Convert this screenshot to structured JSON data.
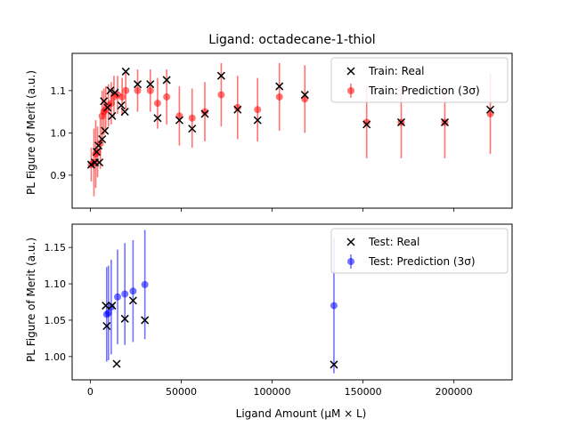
{
  "chart_data": [
    {
      "type": "scatter",
      "title": "Ligand: octadecane-1-thiol",
      "ylabel": "PL Figure of Merit (a.u.)",
      "xlim": [
        -10000,
        232000
      ],
      "ylim": [
        0.822,
        1.188
      ],
      "yticks": [
        0.9,
        1.0,
        1.1
      ],
      "ytick_labels": [
        "0.9",
        "1.0",
        "1.1"
      ],
      "grid": false,
      "legend_position": "top-right",
      "series": [
        {
          "name": "Train: Real",
          "marker": "x",
          "color": "#000000",
          "points": [
            {
              "x": 500,
              "y": 0.925
            },
            {
              "x": 2500,
              "y": 0.93
            },
            {
              "x": 3500,
              "y": 0.955
            },
            {
              "x": 4500,
              "y": 0.97
            },
            {
              "x": 5000,
              "y": 0.93
            },
            {
              "x": 6500,
              "y": 0.985
            },
            {
              "x": 7500,
              "y": 1.075
            },
            {
              "x": 8000,
              "y": 1.005
            },
            {
              "x": 9500,
              "y": 1.06
            },
            {
              "x": 11000,
              "y": 1.1
            },
            {
              "x": 12000,
              "y": 1.04
            },
            {
              "x": 13500,
              "y": 1.095
            },
            {
              "x": 17000,
              "y": 1.065
            },
            {
              "x": 19500,
              "y": 1.145
            },
            {
              "x": 19000,
              "y": 1.05
            },
            {
              "x": 26000,
              "y": 1.115
            },
            {
              "x": 33000,
              "y": 1.115
            },
            {
              "x": 37000,
              "y": 1.035
            },
            {
              "x": 42000,
              "y": 1.125
            },
            {
              "x": 49000,
              "y": 1.03
            },
            {
              "x": 56000,
              "y": 1.01
            },
            {
              "x": 63000,
              "y": 1.045
            },
            {
              "x": 72000,
              "y": 1.135
            },
            {
              "x": 81000,
              "y": 1.055
            },
            {
              "x": 92000,
              "y": 1.03
            },
            {
              "x": 104000,
              "y": 1.11
            },
            {
              "x": 118000,
              "y": 1.09
            },
            {
              "x": 152000,
              "y": 1.02
            },
            {
              "x": 171000,
              "y": 1.025
            },
            {
              "x": 195000,
              "y": 1.025
            },
            {
              "x": 220000,
              "y": 1.055
            }
          ]
        },
        {
          "name": "Train: Prediction (3σ)",
          "marker": "o-errorbar",
          "color": "#ff0000",
          "points": [
            {
              "x": 500,
              "y": 0.925,
              "err": 0.04
            },
            {
              "x": 2000,
              "y": 0.93,
              "err": 0.08
            },
            {
              "x": 3000,
              "y": 0.95,
              "err": 0.08
            },
            {
              "x": 4000,
              "y": 0.955,
              "err": 0.06
            },
            {
              "x": 5500,
              "y": 0.975,
              "err": 0.06
            },
            {
              "x": 6500,
              "y": 1.04,
              "err": 0.06
            },
            {
              "x": 7500,
              "y": 1.05,
              "err": 0.055
            },
            {
              "x": 8500,
              "y": 1.055,
              "err": 0.055
            },
            {
              "x": 10000,
              "y": 1.065,
              "err": 0.05
            },
            {
              "x": 11500,
              "y": 1.07,
              "err": 0.05
            },
            {
              "x": 13000,
              "y": 1.085,
              "err": 0.05
            },
            {
              "x": 15000,
              "y": 1.09,
              "err": 0.045
            },
            {
              "x": 17500,
              "y": 1.085,
              "err": 0.045
            },
            {
              "x": 19500,
              "y": 1.1,
              "err": 0.045
            },
            {
              "x": 26000,
              "y": 1.1,
              "err": 0.05
            },
            {
              "x": 33000,
              "y": 1.1,
              "err": 0.05
            },
            {
              "x": 37000,
              "y": 1.07,
              "err": 0.06
            },
            {
              "x": 42000,
              "y": 1.085,
              "err": 0.065
            },
            {
              "x": 49000,
              "y": 1.04,
              "err": 0.07
            },
            {
              "x": 56000,
              "y": 1.035,
              "err": 0.07
            },
            {
              "x": 63000,
              "y": 1.05,
              "err": 0.07
            },
            {
              "x": 72000,
              "y": 1.09,
              "err": 0.075
            },
            {
              "x": 81000,
              "y": 1.06,
              "err": 0.075
            },
            {
              "x": 92000,
              "y": 1.055,
              "err": 0.075
            },
            {
              "x": 104000,
              "y": 1.085,
              "err": 0.08
            },
            {
              "x": 118000,
              "y": 1.08,
              "err": 0.08
            },
            {
              "x": 152000,
              "y": 1.025,
              "err": 0.085
            },
            {
              "x": 171000,
              "y": 1.025,
              "err": 0.085
            },
            {
              "x": 195000,
              "y": 1.025,
              "err": 0.085
            },
            {
              "x": 220000,
              "y": 1.045,
              "err": 0.095
            }
          ]
        }
      ]
    },
    {
      "type": "scatter",
      "xlabel": "Ligand Amount (μM × L)",
      "ylabel": "PL Figure of Merit (a.u.)",
      "xlim": [
        -10000,
        232000
      ],
      "ylim": [
        0.968,
        1.182
      ],
      "xticks": [
        0,
        50000,
        100000,
        150000,
        200000
      ],
      "xtick_labels": [
        "0",
        "50000",
        "100000",
        "150000",
        "200000"
      ],
      "yticks": [
        1.0,
        1.05,
        1.1,
        1.15
      ],
      "ytick_labels": [
        "1.00",
        "1.05",
        "1.10",
        "1.15"
      ],
      "grid": false,
      "legend_position": "top-right",
      "series": [
        {
          "name": "Test: Real",
          "marker": "x",
          "color": "#000000",
          "points": [
            {
              "x": 8500,
              "y": 1.07
            },
            {
              "x": 9000,
              "y": 1.042
            },
            {
              "x": 12000,
              "y": 1.07
            },
            {
              "x": 14500,
              "y": 0.99
            },
            {
              "x": 19000,
              "y": 1.052
            },
            {
              "x": 23500,
              "y": 1.077
            },
            {
              "x": 30000,
              "y": 1.05
            },
            {
              "x": 134000,
              "y": 0.989
            }
          ]
        },
        {
          "name": "Test: Prediction (3σ)",
          "marker": "o-errorbar",
          "color": "#0000ff",
          "points": [
            {
              "x": 9000,
              "y": 1.058,
              "err": 0.065
            },
            {
              "x": 10000,
              "y": 1.06,
              "err": 0.065
            },
            {
              "x": 11500,
              "y": 1.068,
              "err": 0.065
            },
            {
              "x": 15000,
              "y": 1.082,
              "err": 0.065
            },
            {
              "x": 19000,
              "y": 1.086,
              "err": 0.07
            },
            {
              "x": 23500,
              "y": 1.09,
              "err": 0.07
            },
            {
              "x": 30000,
              "y": 1.099,
              "err": 0.075
            },
            {
              "x": 134000,
              "y": 1.07,
              "err": 0.093
            }
          ]
        }
      ]
    }
  ]
}
